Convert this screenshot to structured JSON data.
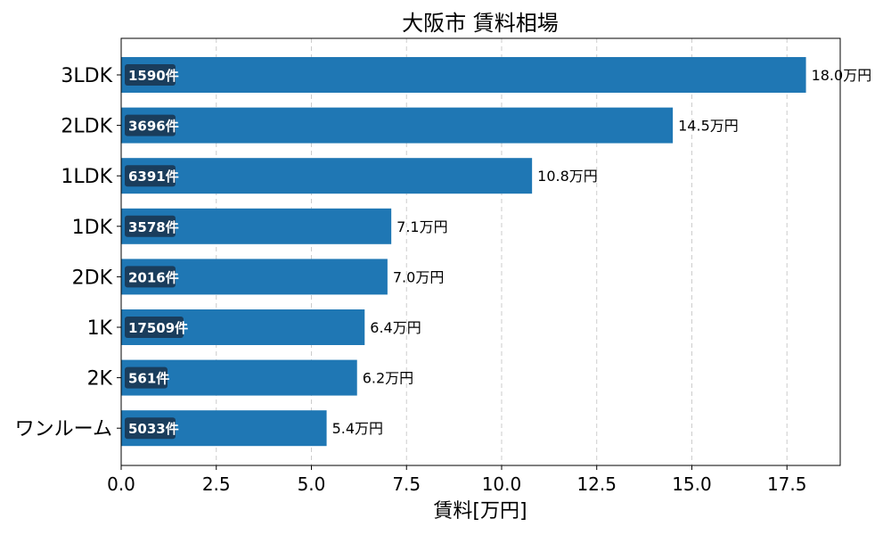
{
  "chart_data": {
    "type": "bar",
    "orientation": "horizontal",
    "title": "大阪市 賃料相場",
    "xlabel": "賃料[万円]",
    "ylabel": "",
    "xlim": [
      0,
      18.9
    ],
    "x_ticks": [
      "0.0",
      "2.5",
      "5.0",
      "7.5",
      "10.0",
      "12.5",
      "15.0",
      "17.5"
    ],
    "grid": "x-dashed",
    "categories": [
      "3LDK",
      "2LDK",
      "1LDK",
      "1DK",
      "2DK",
      "1K",
      "2K",
      "ワンルーム"
    ],
    "values": [
      18.0,
      14.5,
      10.8,
      7.1,
      7.0,
      6.4,
      6.2,
      5.4
    ],
    "value_labels": [
      "18.0万円",
      "14.5万円",
      "10.8万円",
      "7.1万円",
      "7.0万円",
      "6.4万円",
      "6.2万円",
      "5.4万円"
    ],
    "count_labels": [
      "1590件",
      "3696件",
      "6391件",
      "3578件",
      "2016件",
      "17509件",
      "561件",
      "5033件"
    ],
    "colors": {
      "bar": "#1f77b4",
      "count_badge": "#1a3d5c",
      "grid": "#cccccc"
    }
  }
}
